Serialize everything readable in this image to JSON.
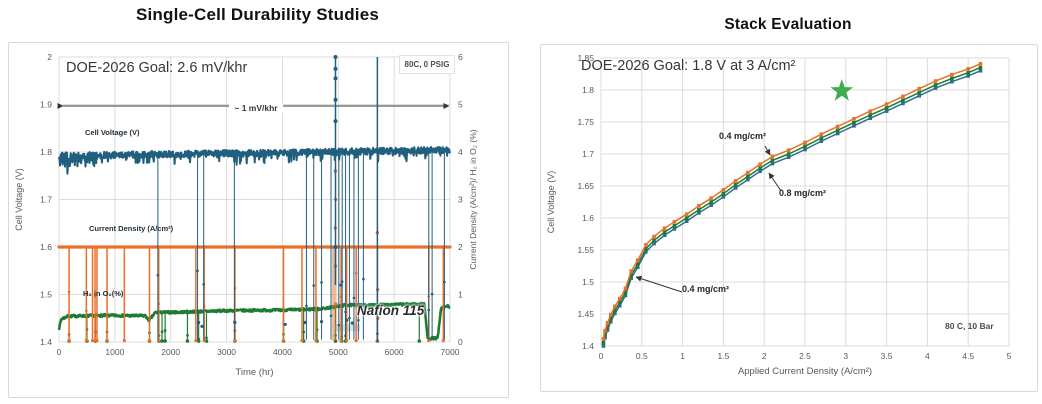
{
  "accent_colors": {
    "teal_blue": "#205f7e",
    "orange": "#e8702a",
    "dark_green": "#1e7b34",
    "star_green": "#3fad4f",
    "grid": "#dcdcdc",
    "axis_text": "#595959"
  },
  "chart_data": [
    {
      "type": "line",
      "title": "Single-Cell Durability Studies",
      "x": {
        "label": "Time (hr)",
        "min": 0,
        "max": 7000,
        "tick_step": 1000
      },
      "y_left": {
        "label": "Cell Voltage (V)",
        "min": 1.4,
        "max": 2.0,
        "tick_step": 0.1
      },
      "y_right": {
        "label": "Current Density (A/cm²)/ H₂ in O₂ (%)",
        "min": 0,
        "max": 6,
        "tick_step": 1
      },
      "annotations": {
        "goal": "DOE-2026 Goal: 2.6 mV/khr",
        "conditions": "80C, 0 PSIG",
        "rate": "~ 1 mV/khr",
        "membrane": "Nafion 115"
      },
      "series": [
        {
          "name": "Cell Voltage (V)",
          "axis": "left",
          "color": "#205f7e",
          "baseline_start": 1.792,
          "baseline_end": 1.804,
          "noise": 0.014,
          "drop_times": [
            1770,
            2480,
            2590,
            3140,
            4430,
            4560,
            4700,
            4870,
            5010,
            5070,
            5130,
            5200,
            5280,
            5360,
            5450,
            6620,
            6680,
            6900
          ],
          "up_spikes": [
            {
              "time": 4950,
              "dots": true
            },
            {
              "time": 5700,
              "dots": false
            }
          ],
          "outlier_dots": [
            [
              2500,
              1.441
            ],
            [
              2560,
              1.433
            ],
            [
              3150,
              1.441
            ],
            [
              4050,
              1.437
            ],
            [
              4400,
              1.441
            ],
            [
              4700,
              1.443
            ],
            [
              5050,
              1.52
            ],
            [
              5150,
              1.446
            ],
            [
              5250,
              1.44
            ]
          ]
        },
        {
          "name": "Current Density (A/cm²)",
          "axis": "right",
          "color": "#e8702a",
          "value": 2,
          "drop_times": [
            180,
            490,
            600,
            645,
            680,
            860,
            1170,
            1620,
            1785,
            2450,
            2600,
            3150,
            4020,
            4350,
            4600,
            5050,
            5150,
            5320,
            5700,
            6620,
            6880
          ],
          "wide_drop": {
            "time": 4930,
            "width_hr": 80
          },
          "cluster_dots": [
            [
              4948,
              3.6
            ],
            [
              4952,
              3.0
            ],
            [
              4946,
              2.4
            ],
            [
              4950,
              1.6
            ],
            [
              4954,
              0.8
            ],
            [
              5700,
              2.3
            ],
            [
              5705,
              1.1
            ],
            [
              5708,
              0.5
            ]
          ]
        },
        {
          "name": "H₂ in O₂(%)",
          "axis": "right",
          "color": "#1e7b34",
          "noise": 0.05,
          "baseline_points": [
            [
              0,
              0.28
            ],
            [
              40,
              0.48
            ],
            [
              150,
              0.54
            ],
            [
              400,
              0.55
            ],
            [
              900,
              0.56
            ],
            [
              1550,
              0.55
            ],
            [
              1610,
              0.45
            ],
            [
              1660,
              0.52
            ],
            [
              1720,
              0.62
            ],
            [
              2200,
              0.63
            ],
            [
              3000,
              0.66
            ],
            [
              3800,
              0.67
            ],
            [
              4300,
              0.68
            ],
            [
              4700,
              0.7
            ],
            [
              4950,
              0.74
            ],
            [
              5150,
              0.78
            ],
            [
              5500,
              0.77
            ],
            [
              6000,
              0.79
            ],
            [
              6540,
              0.8
            ],
            [
              6600,
              0.08
            ],
            [
              6780,
              0.08
            ],
            [
              6840,
              0.7
            ],
            [
              6950,
              0.76
            ],
            [
              7000,
              0.74
            ]
          ],
          "dip_times": [
            180,
            500,
            650,
            860,
            1620,
            1790,
            1845,
            1900,
            2300,
            2500,
            2640,
            3150,
            4020,
            4380,
            4620,
            4950,
            5060,
            5130,
            5700,
            6450
          ],
          "ghost_squares": [
            4990,
            5090,
            5210,
            5330
          ]
        }
      ]
    },
    {
      "type": "line",
      "title": "Stack Evaluation",
      "x": {
        "label": "Applied Current Density (A/cm²)",
        "min": 0,
        "max": 5,
        "tick_step": 0.5,
        "values": [
          0.03,
          0.05,
          0.08,
          0.12,
          0.17,
          0.23,
          0.3,
          0.37,
          0.45,
          0.55,
          0.65,
          0.78,
          0.9,
          1.05,
          1.2,
          1.35,
          1.5,
          1.65,
          1.8,
          1.95,
          2.1,
          2.3,
          2.5,
          2.7,
          2.9,
          3.1,
          3.3,
          3.5,
          3.7,
          3.9,
          4.1,
          4.3,
          4.5,
          4.65
        ]
      },
      "y": {
        "label": "Cell Voltage (V)",
        "min": 1.4,
        "max": 1.85,
        "tick_step": 0.05
      },
      "series": [
        {
          "name": "0.4 mg/cm²",
          "color": "#e8702a",
          "values": [
            1.411,
            1.424,
            1.436,
            1.449,
            1.462,
            1.474,
            1.49,
            1.517,
            1.534,
            1.558,
            1.571,
            1.584,
            1.594,
            1.606,
            1.619,
            1.631,
            1.644,
            1.658,
            1.671,
            1.684,
            1.696,
            1.706,
            1.718,
            1.731,
            1.743,
            1.755,
            1.767,
            1.778,
            1.79,
            1.802,
            1.814,
            1.824,
            1.833,
            1.841
          ]
        },
        {
          "name": "0.8 mg/cm²",
          "color": "#1e7b34",
          "values": [
            1.405,
            1.418,
            1.43,
            1.443,
            1.456,
            1.468,
            1.484,
            1.511,
            1.528,
            1.552,
            1.565,
            1.578,
            1.588,
            1.6,
            1.613,
            1.625,
            1.638,
            1.652,
            1.665,
            1.678,
            1.69,
            1.7,
            1.712,
            1.725,
            1.737,
            1.749,
            1.761,
            1.772,
            1.784,
            1.796,
            1.808,
            1.818,
            1.827,
            1.835
          ]
        },
        {
          "name": "0.4 mg/cm²",
          "color": "#2e6e8e",
          "values": [
            1.4,
            1.413,
            1.425,
            1.438,
            1.451,
            1.463,
            1.479,
            1.506,
            1.523,
            1.547,
            1.56,
            1.573,
            1.583,
            1.595,
            1.608,
            1.62,
            1.633,
            1.647,
            1.66,
            1.673,
            1.685,
            1.695,
            1.707,
            1.72,
            1.732,
            1.744,
            1.756,
            1.767,
            1.779,
            1.791,
            1.803,
            1.813,
            1.822,
            1.83
          ]
        }
      ],
      "goal_marker": {
        "x": 3,
        "y": 1.8,
        "shape": "star",
        "color": "#3fad4f"
      },
      "annotations": {
        "goal": "DOE-2026 Goal: 1.8 V at 3 A/cm²",
        "conditions": "80 C, 10 Bar",
        "callouts": [
          {
            "text": "0.4 mg/cm²"
          },
          {
            "text": "0.8 mg/cm²"
          },
          {
            "text": "0.4 mg/cm²"
          }
        ]
      }
    }
  ]
}
